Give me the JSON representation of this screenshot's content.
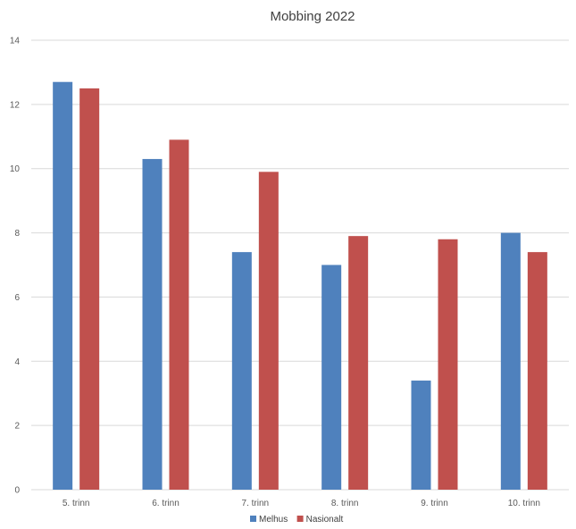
{
  "chart_data": {
    "type": "bar",
    "title": "Mobbing 2022",
    "xlabel": "",
    "ylabel": "",
    "categories": [
      "5. trinn",
      "6. trinn",
      "7. trinn",
      "8. trinn",
      "9. trinn",
      "10. trinn"
    ],
    "series": [
      {
        "name": "Melhus",
        "color": "#4f81bd",
        "values": [
          12.7,
          10.3,
          7.4,
          7.0,
          3.4,
          8.0
        ]
      },
      {
        "name": "Nasionalt",
        "color": "#c0504d",
        "values": [
          12.5,
          10.9,
          9.9,
          7.9,
          7.8,
          7.4
        ]
      }
    ],
    "ylim": [
      0,
      14
    ],
    "yticks": [
      "0",
      "2",
      "4",
      "6",
      "8",
      "10",
      "12",
      "14"
    ],
    "grid": true,
    "gridColor": "#d9d9d9",
    "legend": "bottom"
  }
}
